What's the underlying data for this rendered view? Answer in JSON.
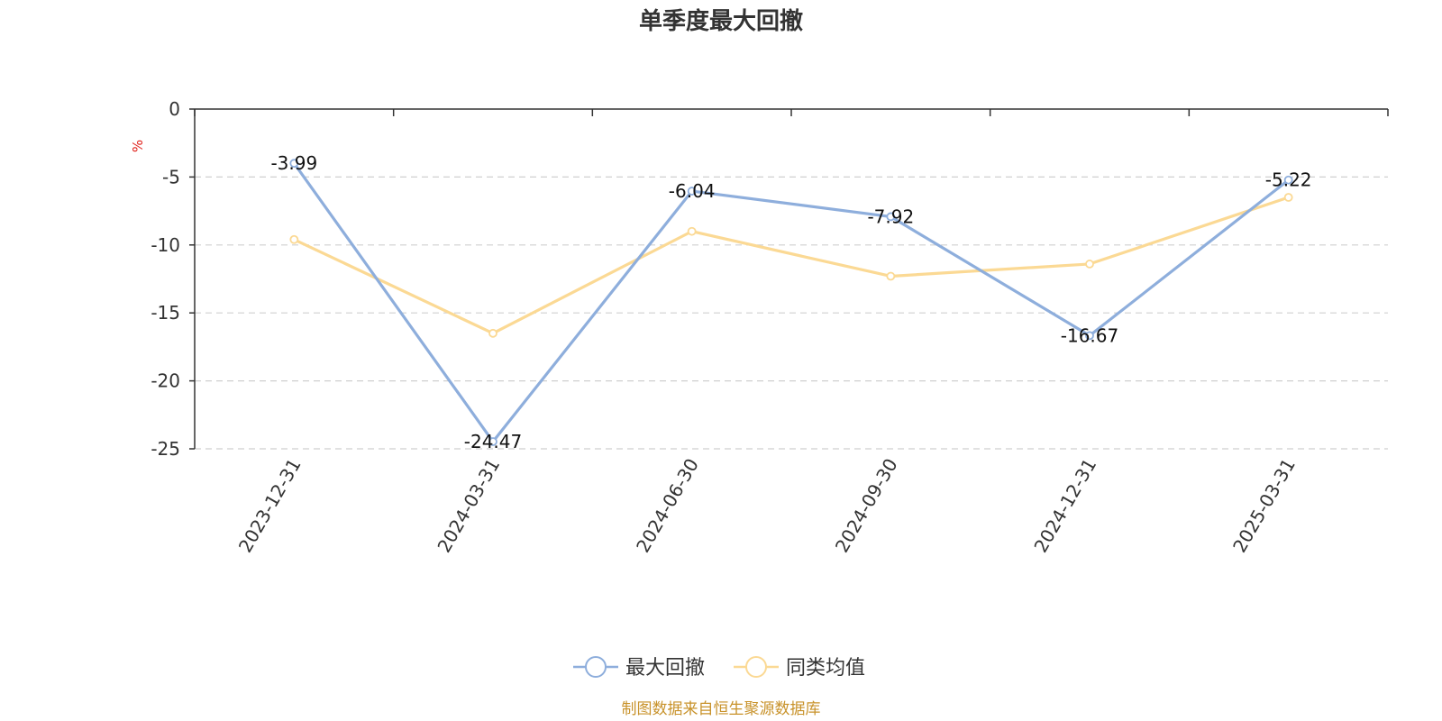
{
  "chart_data": {
    "type": "line",
    "title": "单季度最大回撤",
    "ylabel": "%",
    "ylim": [
      -25,
      0
    ],
    "yticks": [
      0,
      -5,
      -10,
      -15,
      -20,
      -25
    ],
    "grid": true,
    "legend_position": "bottom",
    "categories": [
      "2023-12-31",
      "2024-03-31",
      "2024-06-30",
      "2024-09-30",
      "2024-12-31",
      "2025-03-31"
    ],
    "series": [
      {
        "name": "最大回撤",
        "color": "#8eaedc",
        "values": [
          -3.99,
          -24.47,
          -6.04,
          -7.92,
          -16.67,
          -5.22
        ],
        "labels": [
          "-3.99",
          "-24.47",
          "-6.04",
          "-7.92",
          "-16.67",
          "-5.22"
        ]
      },
      {
        "name": "同类均值",
        "color": "#fbd994",
        "values": [
          -9.6,
          -16.5,
          -9.0,
          -12.3,
          -11.4,
          -6.5
        ]
      }
    ],
    "source": "制图数据来自恒生聚源数据库"
  }
}
